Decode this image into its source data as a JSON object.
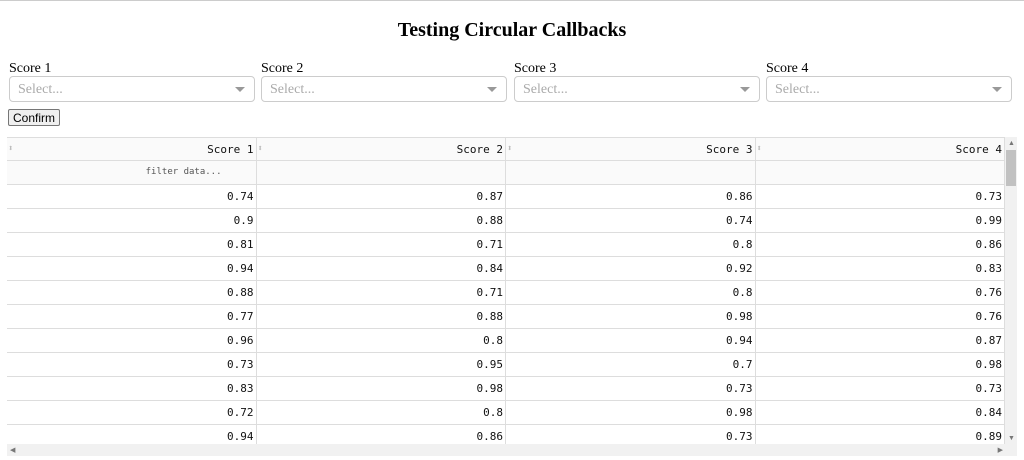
{
  "title": "Testing Circular Callbacks",
  "dropdowns": [
    {
      "label": "Score 1",
      "placeholder": "Select..."
    },
    {
      "label": "Score 2",
      "placeholder": "Select..."
    },
    {
      "label": "Score 3",
      "placeholder": "Select..."
    },
    {
      "label": "Score 4",
      "placeholder": "Select..."
    }
  ],
  "confirm_label": "Confirm",
  "table": {
    "columns": [
      "Score 1",
      "Score 2",
      "Score 3",
      "Score 4"
    ],
    "filter_placeholder": "filter data...",
    "rows": [
      [
        "0.74",
        "0.87",
        "0.86",
        "0.73"
      ],
      [
        "0.9",
        "0.88",
        "0.74",
        "0.99"
      ],
      [
        "0.81",
        "0.71",
        "0.8",
        "0.86"
      ],
      [
        "0.94",
        "0.84",
        "0.92",
        "0.83"
      ],
      [
        "0.88",
        "0.71",
        "0.8",
        "0.76"
      ],
      [
        "0.77",
        "0.88",
        "0.98",
        "0.76"
      ],
      [
        "0.96",
        "0.8",
        "0.94",
        "0.87"
      ],
      [
        "0.73",
        "0.95",
        "0.7",
        "0.98"
      ],
      [
        "0.83",
        "0.98",
        "0.73",
        "0.73"
      ],
      [
        "0.72",
        "0.8",
        "0.98",
        "0.84"
      ],
      [
        "0.94",
        "0.86",
        "0.73",
        "0.89"
      ]
    ]
  }
}
